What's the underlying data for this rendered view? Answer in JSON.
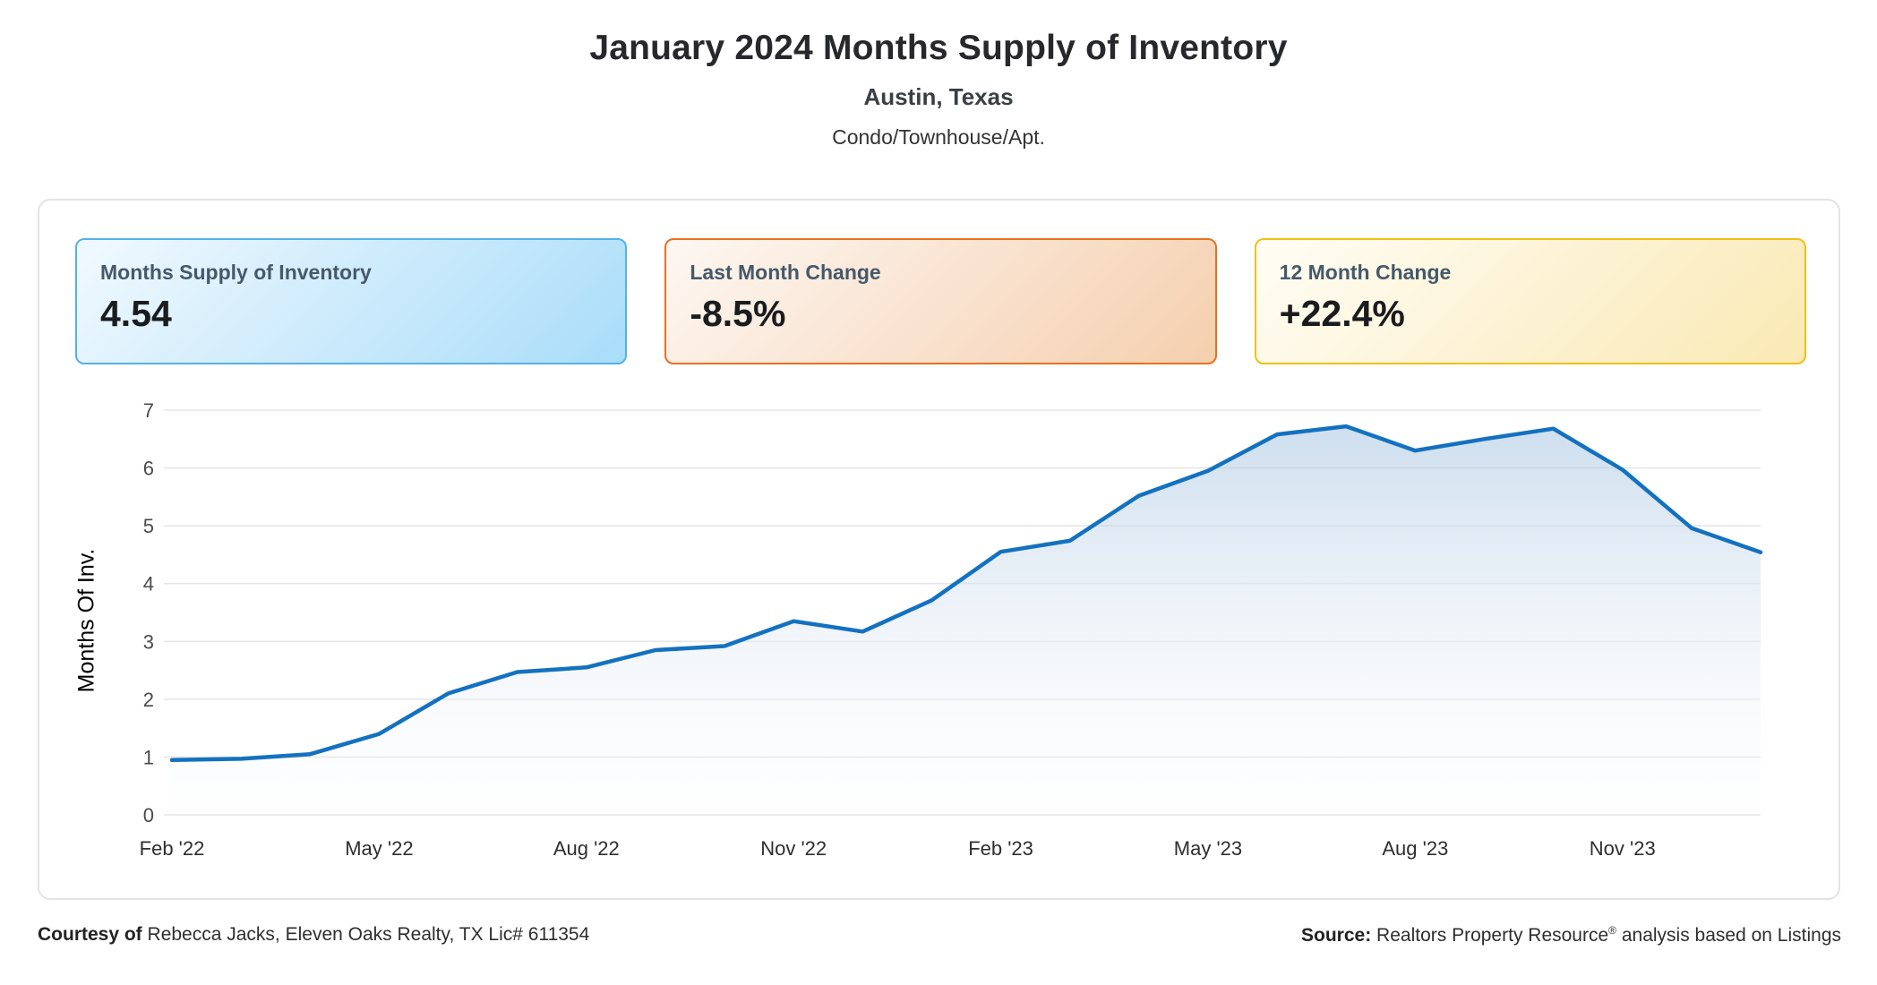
{
  "header": {
    "title": "January 2024 Months Supply of Inventory",
    "subtitle": "Austin, Texas",
    "property_type": "Condo/Townhouse/Apt."
  },
  "stat_cards": [
    {
      "label": "Months Supply of Inventory",
      "value": "4.54",
      "border_color": "#55b1e9",
      "gradient_start": "#f1f9fe",
      "gradient_end": "#a9ddf9"
    },
    {
      "label": "Last Month Change",
      "value": "-8.5%",
      "border_color": "#e8711f",
      "gradient_start": "#fdf7f2",
      "gradient_end": "#f5cfae"
    },
    {
      "label": "12 Month Change",
      "value": "+22.4%",
      "border_color": "#efc014",
      "gradient_start": "#fffdf5",
      "gradient_end": "#fae9b4"
    }
  ],
  "chart_data": {
    "type": "area",
    "title": "January 2024 Months Supply of Inventory",
    "x": [
      "Feb '22",
      "Mar '22",
      "Apr '22",
      "May '22",
      "Jun '22",
      "Jul '22",
      "Aug '22",
      "Sep '22",
      "Oct '22",
      "Nov '22",
      "Dec '22",
      "Jan '23",
      "Feb '23",
      "Mar '23",
      "Apr '23",
      "May '23",
      "Jun '23",
      "Jul '23",
      "Aug '23",
      "Sep '23",
      "Oct '23",
      "Nov '23",
      "Dec '23",
      "Jan '24"
    ],
    "values": [
      0.95,
      0.97,
      1.05,
      1.4,
      2.1,
      2.47,
      2.55,
      2.85,
      2.92,
      3.35,
      3.17,
      3.71,
      4.55,
      4.74,
      5.52,
      5.95,
      6.58,
      6.72,
      6.3,
      6.5,
      6.68,
      5.97,
      4.96,
      4.54
    ],
    "x_tick_labels": [
      "Feb '22",
      "May '22",
      "Aug '22",
      "Nov '22",
      "Feb '23",
      "May '23",
      "Aug '23",
      "Nov '23"
    ],
    "x_tick_every": 3,
    "xlabel": "",
    "ylabel": "Months Of Inv.",
    "ylim": [
      0,
      7
    ],
    "y_ticks": [
      0,
      1,
      2,
      3,
      4,
      5,
      6,
      7
    ],
    "grid": true,
    "legend": "none",
    "line_color": "#1371c0",
    "grid_color": "#e6e6e6",
    "y_tick_color": "#4a4a4a",
    "x_tick_color": "#2e2e2e",
    "area_top_color": "rgba(173,201,228,0.60)",
    "area_mid_color": "rgba(225,234,243,0.45)",
    "area_bottom_color": "rgba(248,250,252,0.15)"
  },
  "footer": {
    "courtesy_label": "Courtesy of",
    "courtesy_text": "Rebecca Jacks, Eleven Oaks Realty, TX Lic# 611354",
    "source_label": "Source:",
    "source_name": "Realtors Property Resource",
    "source_reg": "®",
    "source_suffix": "analysis based on Listings"
  }
}
